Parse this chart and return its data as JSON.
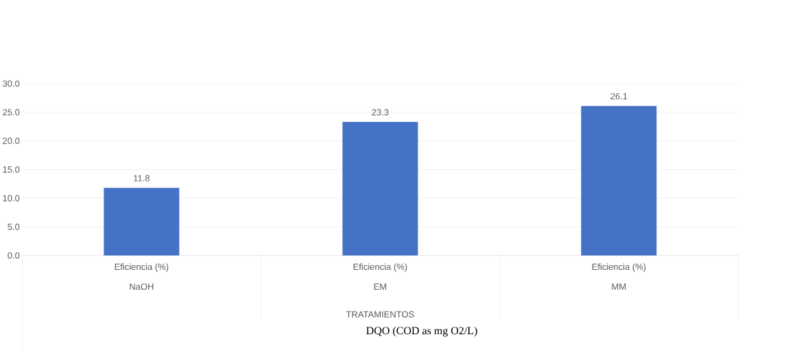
{
  "chart_data": {
    "type": "bar",
    "xlabel": "TRATAMIENTOS",
    "categories": [
      "NaOH",
      "EM",
      "MM"
    ],
    "series": [
      {
        "name": "Eficiencia (%)",
        "color": "#4472c4",
        "values": [
          11.8,
          23.3,
          26.1
        ],
        "value_labels": [
          "11.8",
          "23.3",
          "26.1"
        ]
      }
    ],
    "ylim": [
      0,
      30
    ],
    "yticks": [
      {
        "value": 0,
        "label": "0.0"
      },
      {
        "value": 5,
        "label": "5.0"
      },
      {
        "value": 10,
        "label": "10.0"
      },
      {
        "value": 15,
        "label": "15.0"
      },
      {
        "value": 20,
        "label": "20.0"
      },
      {
        "value": 25,
        "label": "25.0"
      },
      {
        "value": 30,
        "label": "30.0"
      }
    ],
    "grid": "y",
    "annotations": [
      "DQO (COD as mg O2/L)"
    ]
  }
}
